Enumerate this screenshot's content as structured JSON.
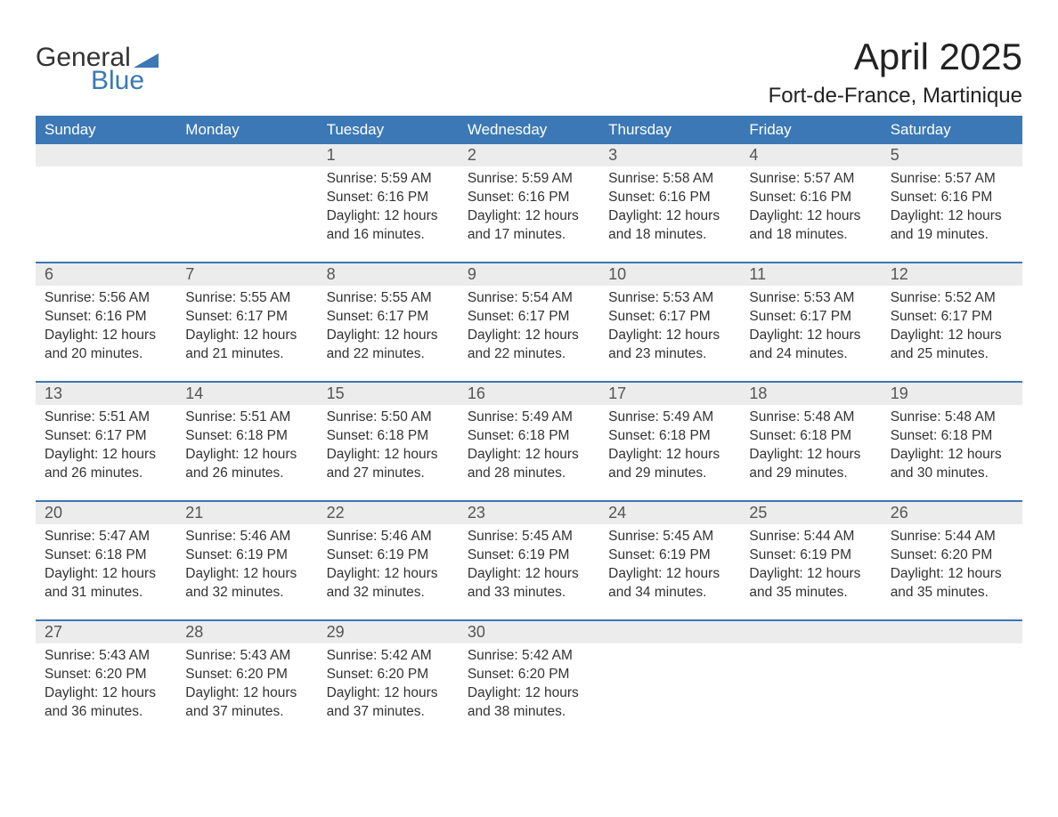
{
  "brand": {
    "word1": "General",
    "word2": "Blue",
    "flag_color": "#3b78b5"
  },
  "title": "April 2025",
  "subtitle": "Fort-de-France, Martinique",
  "colors": {
    "header_bg": "#3b78b5",
    "header_text": "#ffffff",
    "daynum_bg": "#ececec",
    "daynum_text": "#555555",
    "body_text": "#333333",
    "row_divider": "#3b78b5",
    "page_bg": "#ffffff"
  },
  "typography": {
    "title_fontsize": 42,
    "subtitle_fontsize": 24,
    "weekday_fontsize": 17,
    "daynum_fontsize": 18,
    "cell_fontsize": 15.5
  },
  "weekdays": [
    "Sunday",
    "Monday",
    "Tuesday",
    "Wednesday",
    "Thursday",
    "Friday",
    "Saturday"
  ],
  "labels": {
    "sunrise": "Sunrise:",
    "sunset": "Sunset:",
    "daylight": "Daylight:"
  },
  "weeks": [
    [
      null,
      null,
      {
        "n": "1",
        "sunrise": "5:59 AM",
        "sunset": "6:16 PM",
        "daylight": "12 hours and 16 minutes."
      },
      {
        "n": "2",
        "sunrise": "5:59 AM",
        "sunset": "6:16 PM",
        "daylight": "12 hours and 17 minutes."
      },
      {
        "n": "3",
        "sunrise": "5:58 AM",
        "sunset": "6:16 PM",
        "daylight": "12 hours and 18 minutes."
      },
      {
        "n": "4",
        "sunrise": "5:57 AM",
        "sunset": "6:16 PM",
        "daylight": "12 hours and 18 minutes."
      },
      {
        "n": "5",
        "sunrise": "5:57 AM",
        "sunset": "6:16 PM",
        "daylight": "12 hours and 19 minutes."
      }
    ],
    [
      {
        "n": "6",
        "sunrise": "5:56 AM",
        "sunset": "6:16 PM",
        "daylight": "12 hours and 20 minutes."
      },
      {
        "n": "7",
        "sunrise": "5:55 AM",
        "sunset": "6:17 PM",
        "daylight": "12 hours and 21 minutes."
      },
      {
        "n": "8",
        "sunrise": "5:55 AM",
        "sunset": "6:17 PM",
        "daylight": "12 hours and 22 minutes."
      },
      {
        "n": "9",
        "sunrise": "5:54 AM",
        "sunset": "6:17 PM",
        "daylight": "12 hours and 22 minutes."
      },
      {
        "n": "10",
        "sunrise": "5:53 AM",
        "sunset": "6:17 PM",
        "daylight": "12 hours and 23 minutes."
      },
      {
        "n": "11",
        "sunrise": "5:53 AM",
        "sunset": "6:17 PM",
        "daylight": "12 hours and 24 minutes."
      },
      {
        "n": "12",
        "sunrise": "5:52 AM",
        "sunset": "6:17 PM",
        "daylight": "12 hours and 25 minutes."
      }
    ],
    [
      {
        "n": "13",
        "sunrise": "5:51 AM",
        "sunset": "6:17 PM",
        "daylight": "12 hours and 26 minutes."
      },
      {
        "n": "14",
        "sunrise": "5:51 AM",
        "sunset": "6:18 PM",
        "daylight": "12 hours and 26 minutes."
      },
      {
        "n": "15",
        "sunrise": "5:50 AM",
        "sunset": "6:18 PM",
        "daylight": "12 hours and 27 minutes."
      },
      {
        "n": "16",
        "sunrise": "5:49 AM",
        "sunset": "6:18 PM",
        "daylight": "12 hours and 28 minutes."
      },
      {
        "n": "17",
        "sunrise": "5:49 AM",
        "sunset": "6:18 PM",
        "daylight": "12 hours and 29 minutes."
      },
      {
        "n": "18",
        "sunrise": "5:48 AM",
        "sunset": "6:18 PM",
        "daylight": "12 hours and 29 minutes."
      },
      {
        "n": "19",
        "sunrise": "5:48 AM",
        "sunset": "6:18 PM",
        "daylight": "12 hours and 30 minutes."
      }
    ],
    [
      {
        "n": "20",
        "sunrise": "5:47 AM",
        "sunset": "6:18 PM",
        "daylight": "12 hours and 31 minutes."
      },
      {
        "n": "21",
        "sunrise": "5:46 AM",
        "sunset": "6:19 PM",
        "daylight": "12 hours and 32 minutes."
      },
      {
        "n": "22",
        "sunrise": "5:46 AM",
        "sunset": "6:19 PM",
        "daylight": "12 hours and 32 minutes."
      },
      {
        "n": "23",
        "sunrise": "5:45 AM",
        "sunset": "6:19 PM",
        "daylight": "12 hours and 33 minutes."
      },
      {
        "n": "24",
        "sunrise": "5:45 AM",
        "sunset": "6:19 PM",
        "daylight": "12 hours and 34 minutes."
      },
      {
        "n": "25",
        "sunrise": "5:44 AM",
        "sunset": "6:19 PM",
        "daylight": "12 hours and 35 minutes."
      },
      {
        "n": "26",
        "sunrise": "5:44 AM",
        "sunset": "6:20 PM",
        "daylight": "12 hours and 35 minutes."
      }
    ],
    [
      {
        "n": "27",
        "sunrise": "5:43 AM",
        "sunset": "6:20 PM",
        "daylight": "12 hours and 36 minutes."
      },
      {
        "n": "28",
        "sunrise": "5:43 AM",
        "sunset": "6:20 PM",
        "daylight": "12 hours and 37 minutes."
      },
      {
        "n": "29",
        "sunrise": "5:42 AM",
        "sunset": "6:20 PM",
        "daylight": "12 hours and 37 minutes."
      },
      {
        "n": "30",
        "sunrise": "5:42 AM",
        "sunset": "6:20 PM",
        "daylight": "12 hours and 38 minutes."
      },
      null,
      null,
      null
    ]
  ]
}
